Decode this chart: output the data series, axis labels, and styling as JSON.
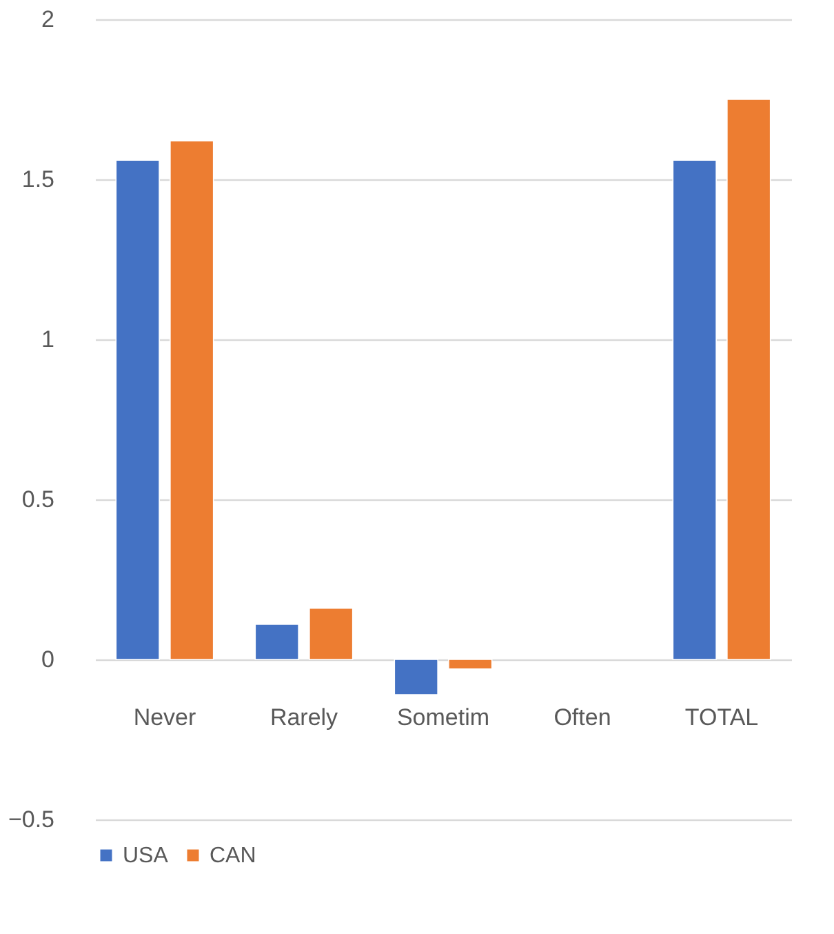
{
  "chart_data": {
    "type": "bar",
    "categories": [
      "Never",
      "Rarely",
      "Sometim",
      "Often",
      "TOTAL"
    ],
    "series": [
      {
        "name": "USA",
        "color": "#4472c4",
        "values": [
          1.56,
          0.11,
          -0.11,
          null,
          1.56
        ]
      },
      {
        "name": "CAN",
        "color": "#ed7d31",
        "values": [
          1.62,
          0.16,
          -0.03,
          null,
          1.75
        ]
      }
    ],
    "ylim": [
      -0.5,
      2
    ],
    "yticks": [
      -0.5,
      0,
      0.5,
      1,
      1.5,
      2
    ],
    "grid": "y",
    "legend": "bottom"
  }
}
